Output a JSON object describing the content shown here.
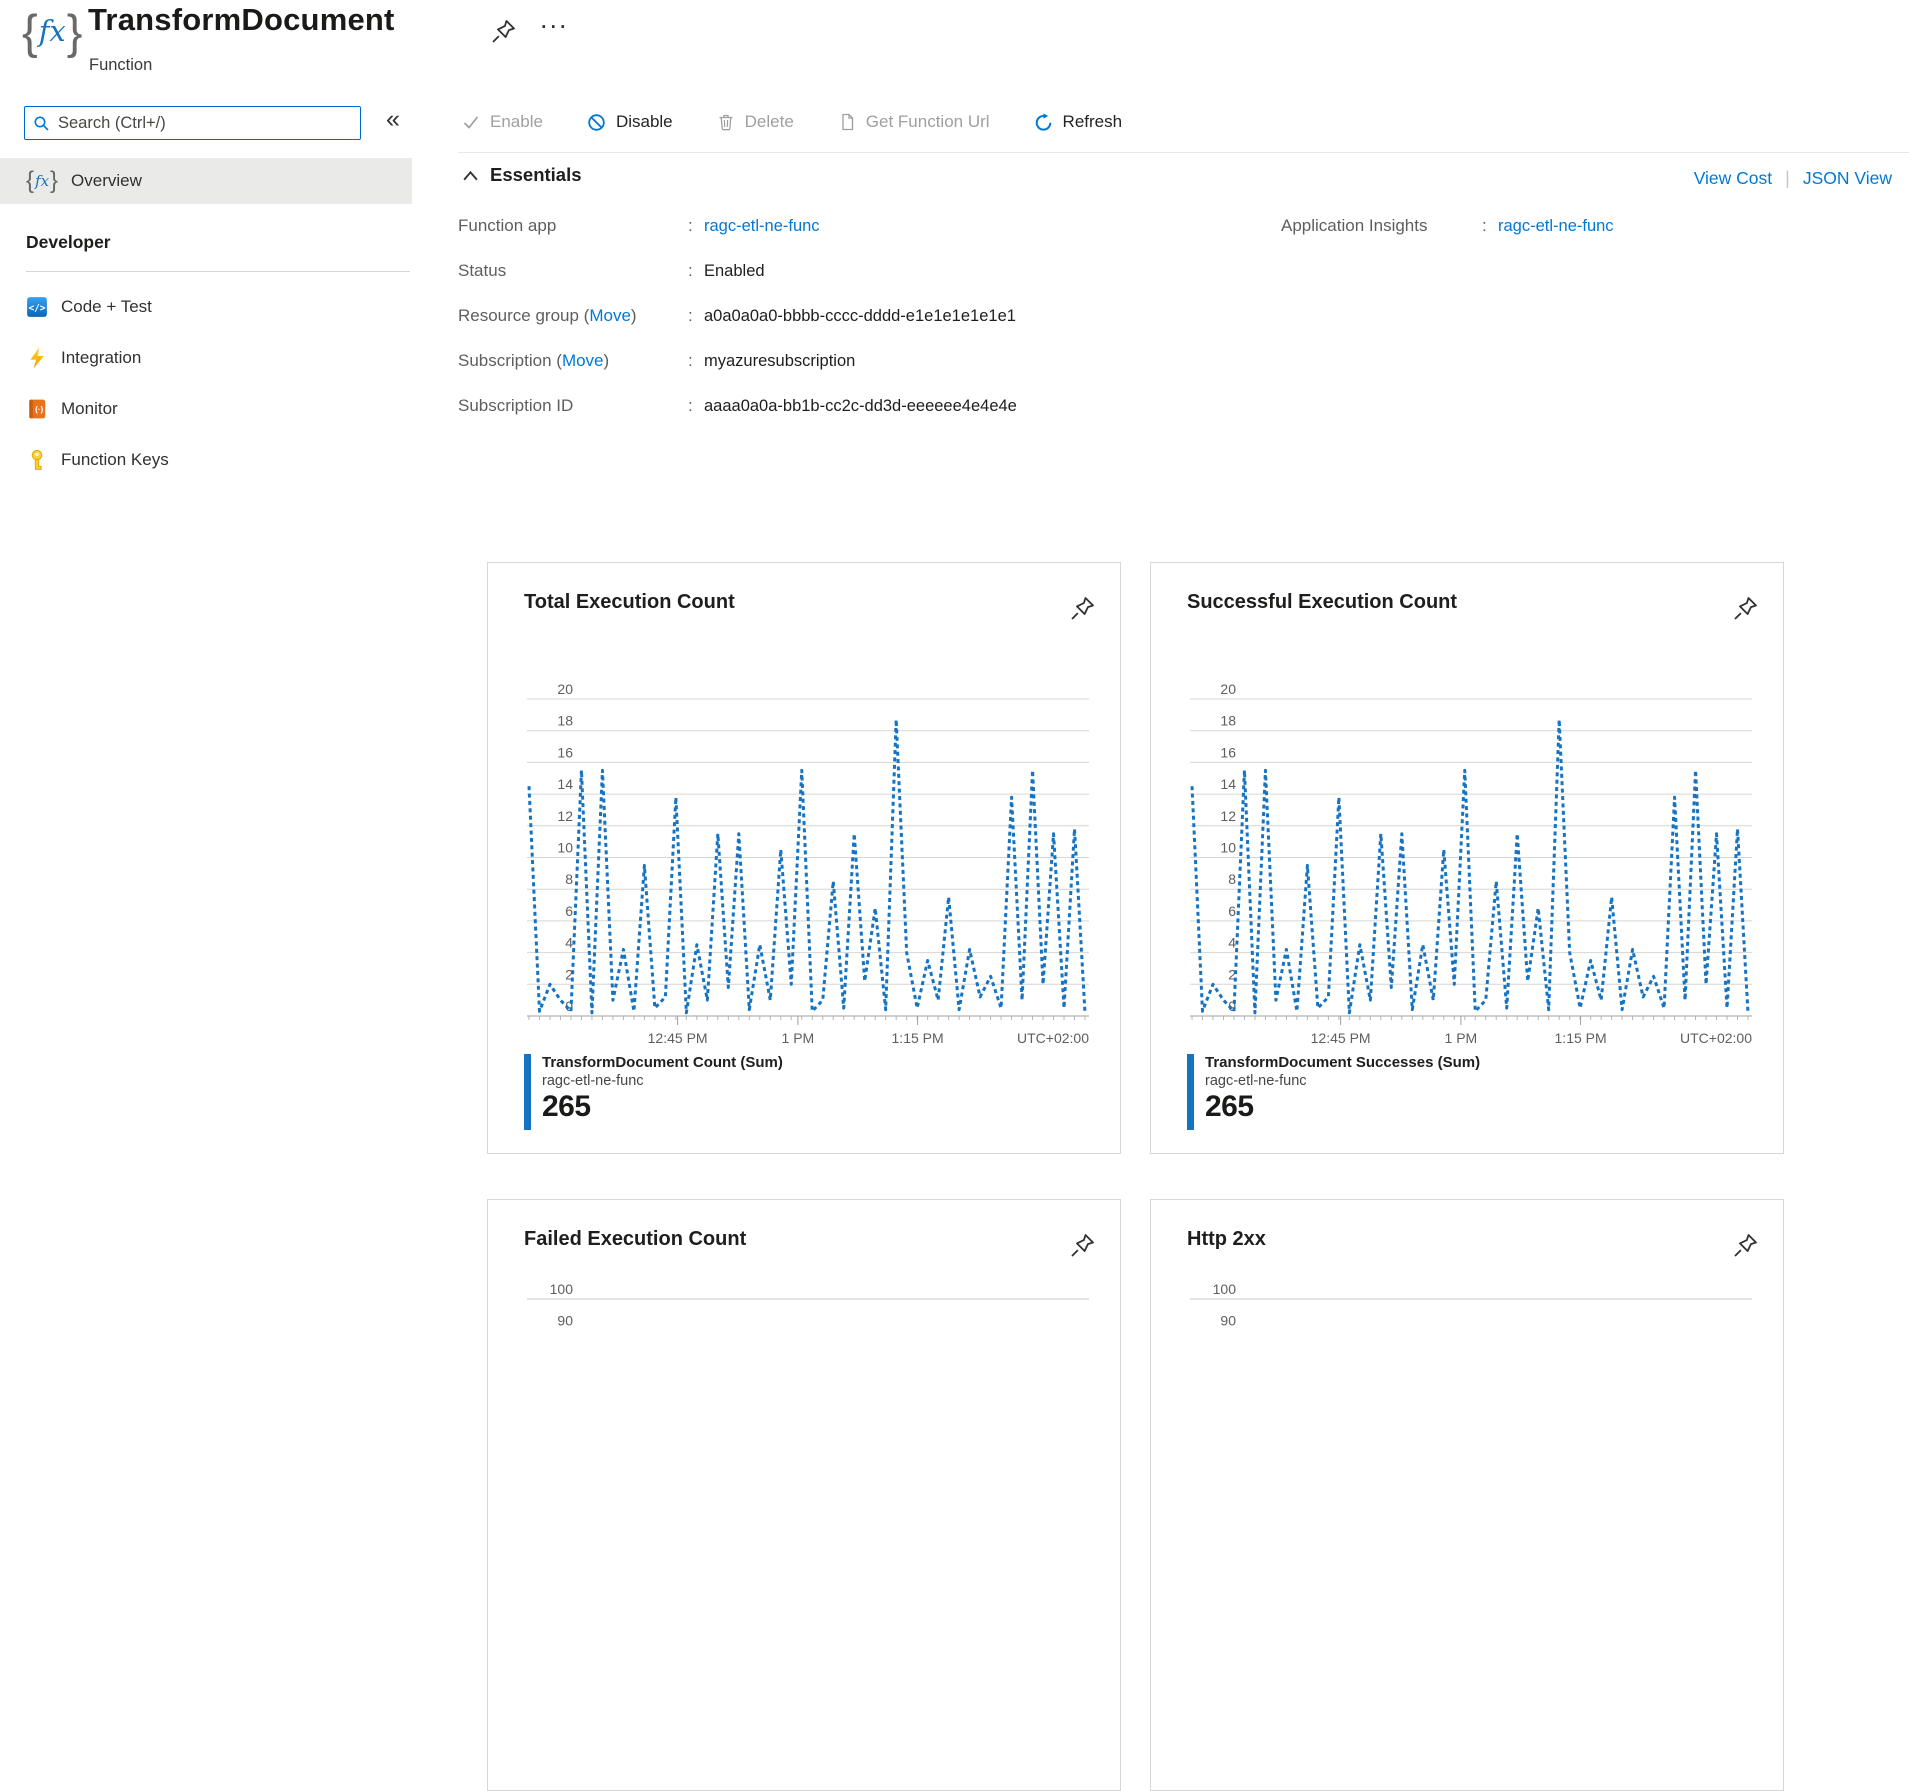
{
  "header": {
    "title": "TransformDocument",
    "subtitle": "Function",
    "more_glyph": "..."
  },
  "sidebar": {
    "search": {
      "placeholder": "Search (Ctrl+/)",
      "value": ""
    },
    "collapse_glyph": "«",
    "overview": {
      "label": "Overview"
    },
    "section": {
      "title": "Developer",
      "items": [
        {
          "label": "Code + Test",
          "icon": "code-icon"
        },
        {
          "label": "Integration",
          "icon": "lightning-icon"
        },
        {
          "label": "Monitor",
          "icon": "monitor-book-icon"
        },
        {
          "label": "Function Keys",
          "icon": "key-icon"
        }
      ]
    }
  },
  "toolbar": {
    "enable": "Enable",
    "disable": "Disable",
    "delete": "Delete",
    "get_url": "Get Function Url",
    "refresh": "Refresh"
  },
  "essentials": {
    "title": "Essentials",
    "view_cost": "View Cost",
    "json_view": "JSON View",
    "link_separator": "|",
    "colon": ":",
    "left_rows": [
      {
        "label_before": "Function app",
        "value": "ragc-etl-ne-func",
        "link": true
      },
      {
        "label_before": "Status",
        "value": "Enabled",
        "link": false
      },
      {
        "label_before": "Resource group (",
        "move": "Move",
        "label_after": ")",
        "value": "a0a0a0a0-bbbb-cccc-dddd-e1e1e1e1e1e1",
        "link": false
      },
      {
        "label_before": "Subscription (",
        "move": "Move",
        "label_after": ")",
        "value": "myazuresubscription",
        "link": false
      },
      {
        "label_before": "Subscription ID",
        "value": "aaaa0a0a-bb1b-cc2c-dd3d-eeeeee4e4e4e",
        "link": false
      }
    ],
    "right_rows": [
      {
        "label_before": "Application Insights",
        "value": "ragc-etl-ne-func",
        "link": true
      }
    ]
  },
  "chart_data": [
    {
      "type": "line",
      "title": "Total Execution Count",
      "color": "#1673c2",
      "dashed": true,
      "ylim": [
        0,
        20
      ],
      "yticks": [
        20,
        18,
        16,
        14,
        12,
        10,
        8,
        6,
        4,
        2,
        0
      ],
      "x_ticks": [
        {
          "label": "12:45 PM",
          "pos": 0.268
        },
        {
          "label": "1 PM",
          "pos": 0.482
        },
        {
          "label": "1:15 PM",
          "pos": 0.695
        }
      ],
      "utc_label": "UTC+02:00",
      "values": [
        14.5,
        0.3,
        2,
        1,
        0.3,
        15.5,
        0.2,
        15.5,
        1,
        4.2,
        0.3,
        9.5,
        0.5,
        1.2,
        13.8,
        0.2,
        4.5,
        1,
        11.5,
        1.8,
        11.5,
        0.4,
        4.5,
        1,
        10.5,
        2,
        15.5,
        0.3,
        1,
        8.5,
        0.5,
        11.5,
        2.2,
        6.8,
        0.4,
        18.7,
        4,
        0.5,
        3.5,
        1,
        7.5,
        0.4,
        4.2,
        1.2,
        2.5,
        0.5,
        13.8,
        1,
        15.5,
        2,
        11.5,
        0.5,
        11.8,
        0.2
      ],
      "legend": {
        "name": "TransformDocument Count (Sum)",
        "resource": "ragc-etl-ne-func",
        "total": "265"
      }
    },
    {
      "type": "line",
      "title": "Successful Execution Count",
      "color": "#1673c2",
      "dashed": true,
      "ylim": [
        0,
        20
      ],
      "yticks": [
        20,
        18,
        16,
        14,
        12,
        10,
        8,
        6,
        4,
        2,
        0
      ],
      "x_ticks": [
        {
          "label": "12:45 PM",
          "pos": 0.268
        },
        {
          "label": "1 PM",
          "pos": 0.482
        },
        {
          "label": "1:15 PM",
          "pos": 0.695
        }
      ],
      "utc_label": "UTC+02:00",
      "values": [
        14.5,
        0.3,
        2,
        1,
        0.3,
        15.5,
        0.2,
        15.5,
        1,
        4.2,
        0.3,
        9.5,
        0.5,
        1.2,
        13.8,
        0.2,
        4.5,
        1,
        11.5,
        1.8,
        11.5,
        0.4,
        4.5,
        1,
        10.5,
        2,
        15.5,
        0.3,
        1,
        8.5,
        0.5,
        11.5,
        2.2,
        6.8,
        0.4,
        18.7,
        4,
        0.5,
        3.5,
        1,
        7.5,
        0.4,
        4.2,
        1.2,
        2.5,
        0.5,
        13.8,
        1,
        15.5,
        2,
        11.5,
        0.5,
        11.8,
        0.2
      ],
      "legend": {
        "name": "TransformDocument Successes (Sum)",
        "resource": "ragc-etl-ne-func",
        "total": "265"
      }
    },
    {
      "type": "line",
      "title": "Failed Execution Count",
      "partial": true,
      "color": "#1673c2",
      "yticks_visible": [
        100,
        90
      ]
    },
    {
      "type": "line",
      "title": "Http 2xx",
      "partial": true,
      "color": "#1673c2",
      "yticks_visible": [
        100,
        90
      ]
    }
  ]
}
